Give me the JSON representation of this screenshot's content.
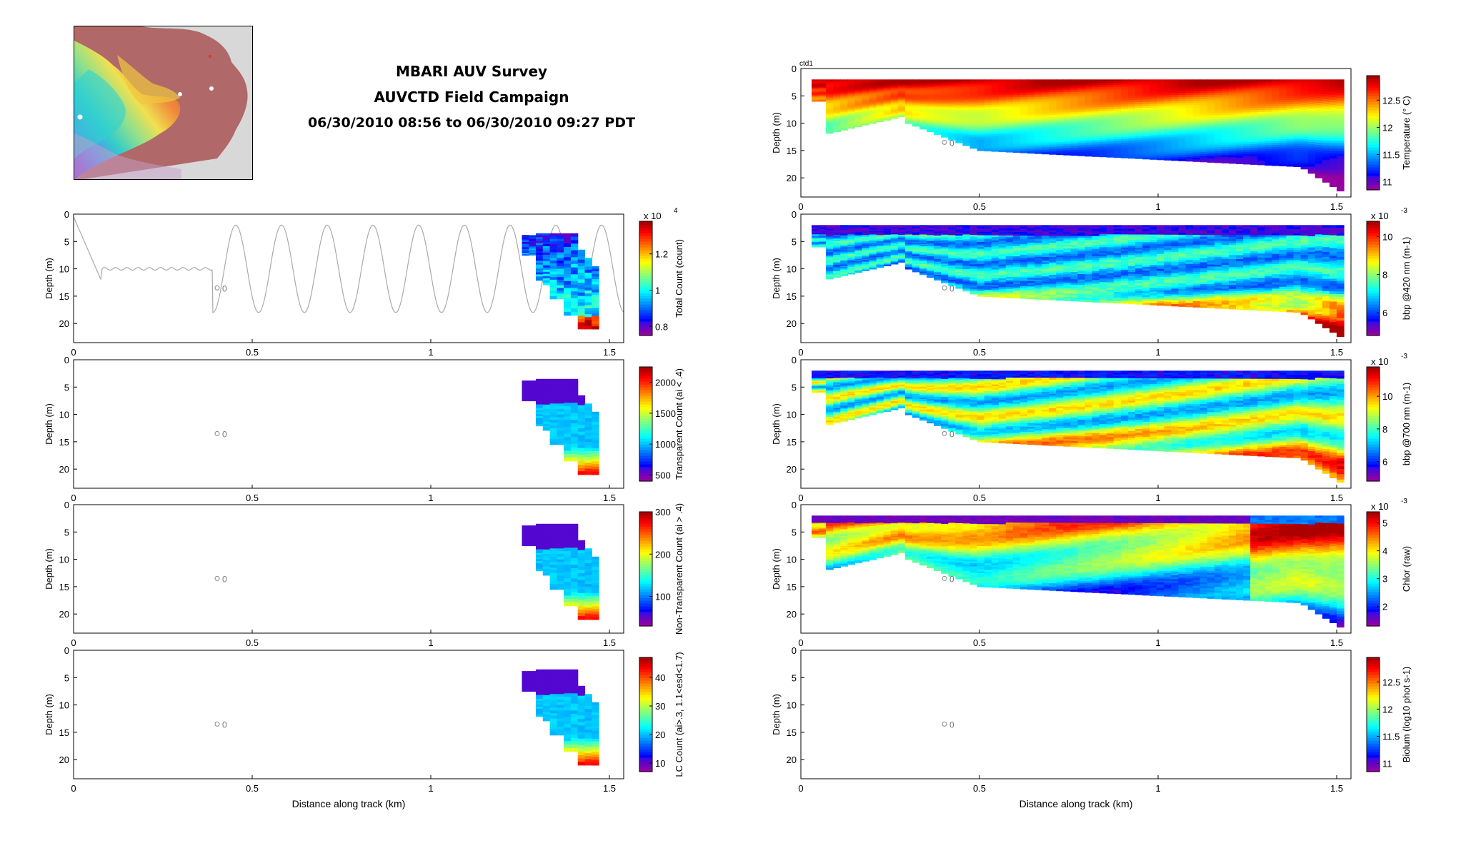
{
  "header": {
    "line1": "MBARI AUV Survey",
    "line2": "AUVCTD Field Campaign",
    "line3": "06/30/2010 08:56 to 06/30/2010 09:27 PDT"
  },
  "map": {
    "name": "location map"
  },
  "common": {
    "xlabel": "Distance along track (km)",
    "ylabel": "Depth (m)",
    "x_ticks": [
      "0",
      "0.5",
      "1",
      "1.5"
    ],
    "y_ticks": [
      "0",
      "5",
      "10",
      "15",
      "20"
    ],
    "marker_label": "0",
    "top_panel_tag": "ctd1"
  },
  "chart_data": [
    {
      "type": "heatmap",
      "id": "total_count",
      "column": "left",
      "row": 1,
      "ylabel": "Depth (m)",
      "xlim": [
        0,
        1.54
      ],
      "ylim": [
        23.5,
        0
      ],
      "colorbar": {
        "label": "Total Count (count)",
        "multiplier": "x 10",
        "exponent": "4",
        "ticks": [
          "0.8",
          "1",
          "1.2"
        ],
        "tick_values": [
          0.8,
          1.0,
          1.2
        ],
        "range": [
          0.75,
          1.38
        ]
      },
      "trace": "grey AUV yo-yo track: ~10 m level leg from 0.09 to 0.39 km then oscillating 2-18 m",
      "marker": {
        "x": 0.41,
        "depth": 13.5,
        "label": "0"
      },
      "data_extent": {
        "x": [
          1.25,
          1.47
        ],
        "depth": [
          3.5,
          21
        ]
      }
    },
    {
      "type": "heatmap",
      "id": "transparent_count",
      "column": "left",
      "row": 2,
      "ylabel": "Depth (m)",
      "xlim": [
        0,
        1.54
      ],
      "ylim": [
        23.5,
        0
      ],
      "colorbar": {
        "label": "Transparent Count (ai < .4)",
        "ticks": [
          "500",
          "1000",
          "1500",
          "2000"
        ],
        "tick_values": [
          500,
          1000,
          1500,
          2000
        ],
        "range": [
          400,
          2250
        ]
      },
      "marker": {
        "x": 0.41,
        "depth": 13.5,
        "label": "0"
      },
      "data_extent": {
        "x": [
          1.25,
          1.47
        ],
        "depth": [
          3.5,
          21
        ]
      }
    },
    {
      "type": "heatmap",
      "id": "nontransparent_count",
      "column": "left",
      "row": 3,
      "ylabel": "Depth (m)",
      "xlim": [
        0,
        1.54
      ],
      "ylim": [
        23.5,
        0
      ],
      "colorbar": {
        "label": "Non-Transparent Count (ai > .4)",
        "ticks": [
          "100",
          "200",
          "300"
        ],
        "tick_values": [
          100,
          200,
          300
        ],
        "range": [
          30,
          300
        ]
      },
      "marker": {
        "x": 0.41,
        "depth": 13.5,
        "label": "0"
      },
      "data_extent": {
        "x": [
          1.25,
          1.47
        ],
        "depth": [
          3.5,
          21
        ]
      }
    },
    {
      "type": "heatmap",
      "id": "lc_count",
      "column": "left",
      "row": 4,
      "ylabel": "Depth (m)",
      "xlabel": "Distance along track (km)",
      "xlim": [
        0,
        1.54
      ],
      "ylim": [
        23.5,
        0
      ],
      "colorbar": {
        "label": "LC Count (ai>.3, 1.1<esd<1.7)",
        "ticks": [
          "10",
          "20",
          "30",
          "40"
        ],
        "tick_values": [
          10,
          20,
          30,
          40
        ],
        "range": [
          7,
          47
        ]
      },
      "marker": {
        "x": 0.41,
        "depth": 13.5,
        "label": "0"
      },
      "data_extent": {
        "x": [
          1.25,
          1.47
        ],
        "depth": [
          3.5,
          21
        ]
      }
    },
    {
      "type": "heatmap",
      "id": "temperature",
      "column": "right",
      "row": 0,
      "ylabel": "Depth (m)",
      "xlim": [
        0,
        1.54
      ],
      "ylim": [
        23.5,
        0
      ],
      "colorbar": {
        "label": "Temperature (° C)",
        "ticks": [
          "11",
          "11.5",
          "12",
          "12.5"
        ],
        "tick_values": [
          11,
          11.5,
          12,
          12.5
        ],
        "range": [
          10.85,
          12.95
        ]
      },
      "marker": {
        "x": 0.41,
        "depth": 13.5,
        "label": "0"
      },
      "data_extent": {
        "x": [
          0.03,
          1.52
        ],
        "depth": [
          2,
          23
        ]
      }
    },
    {
      "type": "heatmap",
      "id": "bbp420",
      "column": "right",
      "row": 1,
      "ylabel": "Depth (m)",
      "xlim": [
        0,
        1.54
      ],
      "ylim": [
        23.5,
        0
      ],
      "colorbar": {
        "label": "bbp @420 nm (m-1)",
        "multiplier": "x 10",
        "exponent": "-3",
        "ticks": [
          "6",
          "8",
          "10"
        ],
        "tick_values": [
          6,
          8,
          10
        ],
        "range": [
          4.8,
          10.8
        ]
      },
      "marker": {
        "x": 0.41,
        "depth": 13.5,
        "label": "0"
      },
      "data_extent": {
        "x": [
          0.03,
          1.52
        ],
        "depth": [
          2,
          23
        ]
      }
    },
    {
      "type": "heatmap",
      "id": "bbp700",
      "column": "right",
      "row": 2,
      "ylabel": "Depth (m)",
      "xlim": [
        0,
        1.54
      ],
      "ylim": [
        23.5,
        0
      ],
      "colorbar": {
        "label": "bbp @700 nm (m-1)",
        "multiplier": "x 10",
        "exponent": "-3",
        "ticks": [
          "6",
          "8",
          "10"
        ],
        "tick_values": [
          6,
          8,
          10
        ],
        "range": [
          4.8,
          11.8
        ]
      },
      "marker": {
        "x": 0.41,
        "depth": 13.5,
        "label": "0"
      },
      "data_extent": {
        "x": [
          0.03,
          1.52
        ],
        "depth": [
          2,
          23
        ]
      }
    },
    {
      "type": "heatmap",
      "id": "chlor",
      "column": "right",
      "row": 3,
      "ylabel": "Depth (m)",
      "xlim": [
        0,
        1.54
      ],
      "ylim": [
        23.5,
        0
      ],
      "colorbar": {
        "label": "Chlor (raw)",
        "multiplier": "x 10",
        "exponent": "-3",
        "ticks": [
          "2",
          "3",
          "4",
          "5"
        ],
        "tick_values": [
          2,
          3,
          4,
          5
        ],
        "range": [
          1.3,
          5.4
        ]
      },
      "marker": {
        "x": 0.41,
        "depth": 13.5,
        "label": "0"
      },
      "data_extent": {
        "x": [
          0.03,
          1.52
        ],
        "depth": [
          2,
          23
        ]
      }
    },
    {
      "type": "heatmap",
      "id": "biolum",
      "column": "right",
      "row": 4,
      "ylabel": "Depth (m)",
      "xlabel": "Distance along track (km)",
      "xlim": [
        0,
        1.54
      ],
      "ylim": [
        23.5,
        0
      ],
      "colorbar": {
        "label": "Biolum (log10 phot s-1)",
        "ticks": [
          "11",
          "11.5",
          "12",
          "12.5"
        ],
        "tick_values": [
          11,
          11.5,
          12,
          12.5
        ],
        "range": [
          10.85,
          12.95
        ]
      },
      "marker": {
        "x": 0.41,
        "depth": 13.5,
        "label": "0"
      },
      "data_extent": null
    }
  ]
}
